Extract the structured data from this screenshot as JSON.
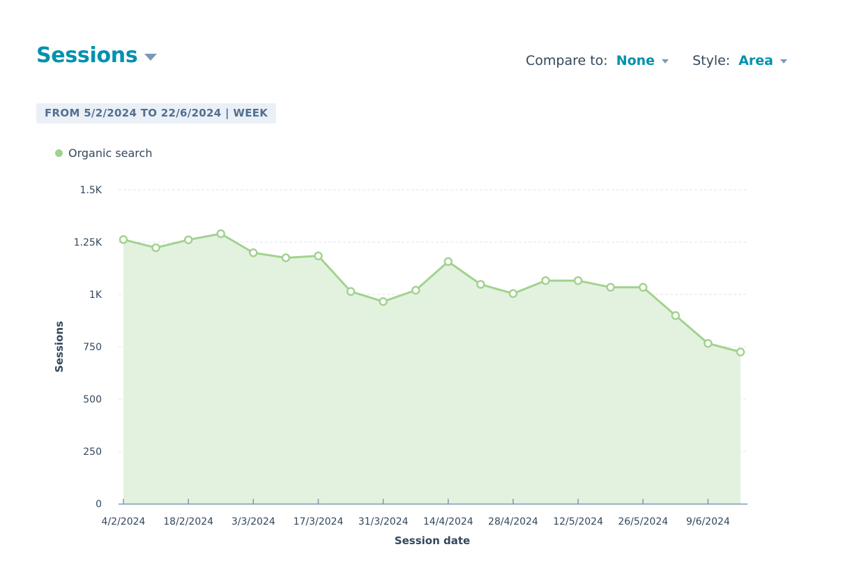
{
  "header": {
    "title": "Sessions",
    "compare_label": "Compare to:",
    "compare_value": "None",
    "style_label": "Style:",
    "style_value": "Area",
    "range_text": "FROM 5/2/2024 TO 22/6/2024 | WEEK"
  },
  "colors": {
    "accent": "#0091ae",
    "series_line": "#a2d28f",
    "series_fill": "#e3f2df",
    "axis": "#7c98b6",
    "text": "#33475b"
  },
  "chart_data": {
    "type": "area",
    "xlabel": "Session date",
    "ylabel": "Sessions",
    "ylim": [
      0,
      1500
    ],
    "yticks": [
      0,
      250,
      500,
      750,
      1000,
      1250,
      1500
    ],
    "ytick_labels": [
      "0",
      "250",
      "500",
      "750",
      "1K",
      "1.25K",
      "1.5K"
    ],
    "x_tick_labels": [
      "4/2/2024",
      "18/2/2024",
      "3/3/2024",
      "17/3/2024",
      "31/3/2024",
      "14/4/2024",
      "28/4/2024",
      "12/5/2024",
      "26/5/2024",
      "9/6/2024"
    ],
    "x_tick_indices": [
      0,
      2,
      4,
      6,
      8,
      10,
      12,
      14,
      16,
      18
    ],
    "grid": true,
    "legend": "top-left",
    "series": [
      {
        "name": "Organic search",
        "x": [
          "4/2/2024",
          "11/2/2024",
          "18/2/2024",
          "25/2/2024",
          "3/3/2024",
          "10/3/2024",
          "17/3/2024",
          "24/3/2024",
          "31/3/2024",
          "7/4/2024",
          "14/4/2024",
          "21/4/2024",
          "28/4/2024",
          "5/5/2024",
          "12/5/2024",
          "19/5/2024",
          "26/5/2024",
          "2/6/2024",
          "9/6/2024",
          "16/6/2024"
        ],
        "values": [
          1262,
          1223,
          1261,
          1290,
          1199,
          1175,
          1184,
          1014,
          966,
          1020,
          1157,
          1048,
          1004,
          1066,
          1066,
          1034,
          1034,
          899,
          766,
          725
        ]
      }
    ]
  }
}
